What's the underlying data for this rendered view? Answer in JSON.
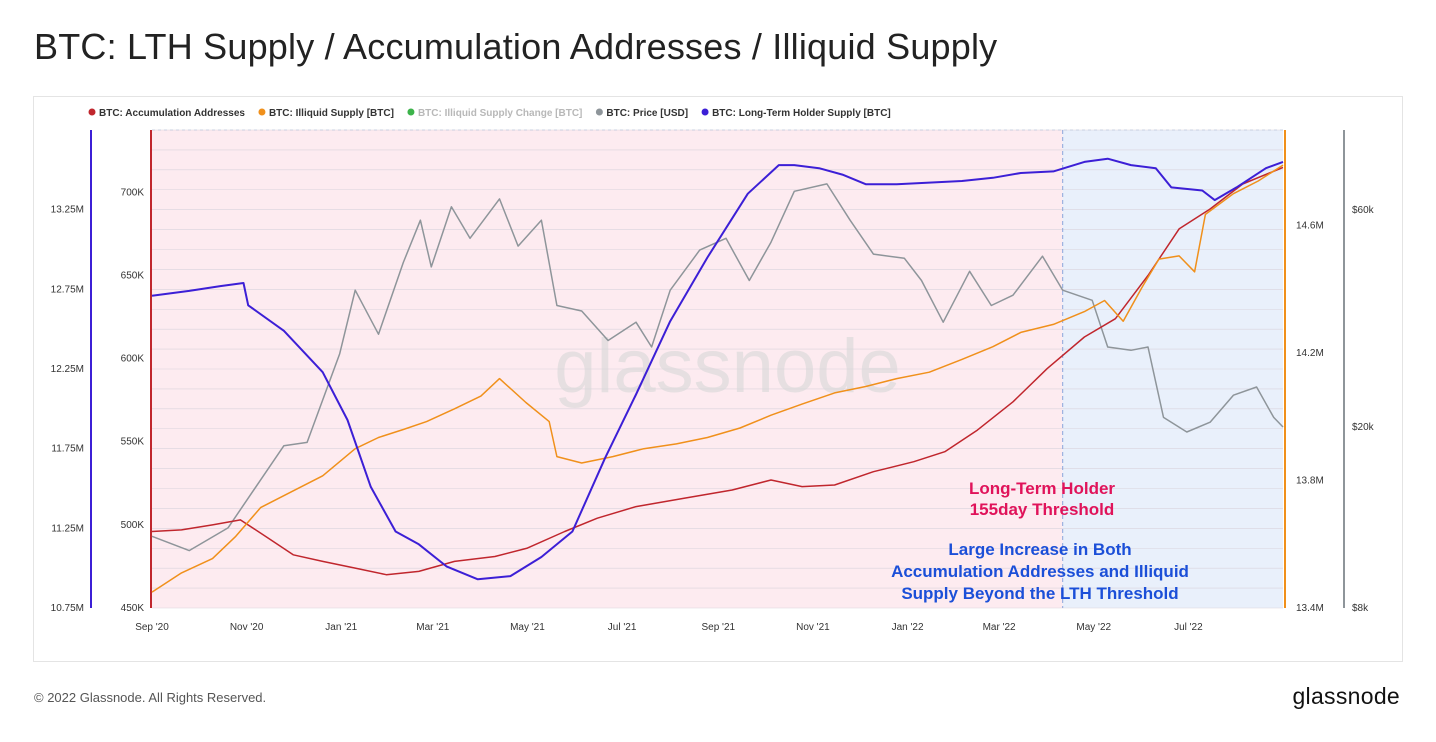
{
  "header": {
    "title": "BTC: LTH Supply / Accumulation Addresses / Illiquid Supply"
  },
  "footer": {
    "copyright": "© 2022 Glassnode. All Rights Reserved.",
    "brand": "glassnode"
  },
  "watermark": "glassnode",
  "colors": {
    "accumulation": "#c0262d",
    "illiquid": "#f0901b",
    "illiquid_change": "#3cb34a",
    "price": "#8e959a",
    "lth": "#3c1fd6",
    "lth_zone": "#fdebf0",
    "post_threshold_zone": "#e9f0fb",
    "anno_pink": "#e0135a",
    "anno_blue": "#1b4fd8"
  },
  "chart_data": {
    "type": "line",
    "title": "BTC: LTH Supply / Accumulation Addresses / Illiquid Supply",
    "legend": {
      "position": "top-left",
      "entries": [
        {
          "name": "BTC: Accumulation Addresses",
          "color": "#c0262d"
        },
        {
          "name": "BTC: Illiquid Supply [BTC]",
          "color": "#f0901b"
        },
        {
          "name": "BTC: Illiquid Supply Change [BTC]",
          "color": "#3cb34a",
          "disabled": true
        },
        {
          "name": "BTC: Price [USD]",
          "color": "#8e959a"
        },
        {
          "name": "BTC: Long-Term Holder Supply [BTC]",
          "color": "#3c1fd6"
        }
      ]
    },
    "x_axis": {
      "range": [
        "2020-09-01",
        "2022-08-31"
      ],
      "ticks": [
        {
          "date": "2020-09-01",
          "label": "Sep '20"
        },
        {
          "date": "2020-11-01",
          "label": "Nov '20"
        },
        {
          "date": "2021-01-01",
          "label": "Jan '21"
        },
        {
          "date": "2021-03-01",
          "label": "Mar '21"
        },
        {
          "date": "2021-05-01",
          "label": "May '21"
        },
        {
          "date": "2021-07-01",
          "label": "Jul '21"
        },
        {
          "date": "2021-09-01",
          "label": "Sep '21"
        },
        {
          "date": "2021-11-01",
          "label": "Nov '21"
        },
        {
          "date": "2022-01-01",
          "label": "Jan '22"
        },
        {
          "date": "2022-03-01",
          "label": "Mar '22"
        },
        {
          "date": "2022-05-01",
          "label": "May '22"
        },
        {
          "date": "2022-07-01",
          "label": "Jul '22"
        }
      ]
    },
    "axes": {
      "illiquid": {
        "side": "left-outer",
        "range": [
          10750000,
          13750000
        ],
        "ticks": [
          {
            "v": 10750000,
            "label": "10.75M"
          },
          {
            "v": 11250000,
            "label": "11.25M"
          },
          {
            "v": 11750000,
            "label": "11.75M"
          },
          {
            "v": 12250000,
            "label": "12.25M"
          },
          {
            "v": 12750000,
            "label": "12.75M"
          },
          {
            "v": 13250000,
            "label": "13.25M"
          }
        ]
      },
      "accumulation": {
        "side": "left-inner",
        "range": [
          450000,
          737500
        ],
        "ticks": [
          {
            "v": 450000,
            "label": "450K"
          },
          {
            "v": 500000,
            "label": "500K"
          },
          {
            "v": 550000,
            "label": "550K"
          },
          {
            "v": 600000,
            "label": "600K"
          },
          {
            "v": 650000,
            "label": "650K"
          },
          {
            "v": 700000,
            "label": "700K"
          }
        ]
      },
      "lth": {
        "side": "right-inner",
        "range": [
          13400000,
          14900000
        ],
        "ticks": [
          {
            "v": 13400000,
            "label": "13.4M"
          },
          {
            "v": 13800000,
            "label": "13.8M"
          },
          {
            "v": 14200000,
            "label": "14.2M"
          },
          {
            "v": 14600000,
            "label": "14.6M"
          }
        ]
      },
      "price": {
        "side": "right-outer",
        "scale": "log",
        "range": [
          8000,
          90000
        ],
        "ticks": [
          {
            "v": 8000,
            "label": "$8k"
          },
          {
            "v": 20000,
            "label": "$20k"
          },
          {
            "v": 60000,
            "label": "$60k"
          }
        ]
      }
    },
    "grid": true,
    "zones": [
      {
        "from": "2020-09-01",
        "to": "2022-04-11",
        "label": "lth_zone"
      },
      {
        "from": "2022-04-11",
        "to": "2022-08-31",
        "label": "post_threshold_zone"
      }
    ],
    "threshold_date": "2022-04-11",
    "series": [
      {
        "name": "BTC: Accumulation Addresses",
        "axis": "accumulation",
        "color": "#c0262d",
        "points": [
          [
            "2020-09-01",
            496000
          ],
          [
            "2020-09-20",
            497000
          ],
          [
            "2020-10-10",
            500000
          ],
          [
            "2020-10-28",
            503000
          ],
          [
            "2020-11-15",
            492000
          ],
          [
            "2020-12-01",
            482000
          ],
          [
            "2020-12-20",
            478000
          ],
          [
            "2021-01-10",
            474000
          ],
          [
            "2021-01-30",
            470000
          ],
          [
            "2021-02-20",
            472000
          ],
          [
            "2021-03-15",
            478000
          ],
          [
            "2021-04-10",
            481000
          ],
          [
            "2021-05-01",
            486000
          ],
          [
            "2021-05-25",
            496000
          ],
          [
            "2021-06-15",
            504000
          ],
          [
            "2021-07-10",
            511000
          ],
          [
            "2021-08-10",
            516000
          ],
          [
            "2021-09-10",
            521000
          ],
          [
            "2021-10-05",
            527000
          ],
          [
            "2021-10-25",
            523000
          ],
          [
            "2021-11-15",
            524000
          ],
          [
            "2021-12-10",
            532000
          ],
          [
            "2022-01-05",
            538000
          ],
          [
            "2022-01-25",
            544000
          ],
          [
            "2022-02-15",
            557000
          ],
          [
            "2022-03-10",
            574000
          ],
          [
            "2022-04-01",
            594000
          ],
          [
            "2022-04-25",
            613000
          ],
          [
            "2022-05-15",
            624000
          ],
          [
            "2022-06-05",
            650000
          ],
          [
            "2022-06-25",
            678000
          ],
          [
            "2022-07-15",
            690000
          ],
          [
            "2022-08-05",
            705000
          ],
          [
            "2022-08-31",
            715000
          ]
        ]
      },
      {
        "name": "BTC: Illiquid Supply [BTC]",
        "axis": "illiquid",
        "color": "#f0901b",
        "points": [
          [
            "2020-09-01",
            10850000
          ],
          [
            "2020-09-20",
            10970000
          ],
          [
            "2020-10-10",
            11060000
          ],
          [
            "2020-10-25",
            11200000
          ],
          [
            "2020-11-10",
            11380000
          ],
          [
            "2020-11-30",
            11480000
          ],
          [
            "2020-12-20",
            11580000
          ],
          [
            "2021-01-10",
            11750000
          ],
          [
            "2021-01-25",
            11820000
          ],
          [
            "2021-02-10",
            11870000
          ],
          [
            "2021-02-25",
            11920000
          ],
          [
            "2021-03-15",
            12000000
          ],
          [
            "2021-04-01",
            12080000
          ],
          [
            "2021-04-13",
            12190000
          ],
          [
            "2021-04-30",
            12040000
          ],
          [
            "2021-05-15",
            11920000
          ],
          [
            "2021-05-20",
            11700000
          ],
          [
            "2021-06-05",
            11660000
          ],
          [
            "2021-06-25",
            11700000
          ],
          [
            "2021-07-15",
            11750000
          ],
          [
            "2021-08-05",
            11780000
          ],
          [
            "2021-08-25",
            11820000
          ],
          [
            "2021-09-15",
            11880000
          ],
          [
            "2021-10-05",
            11960000
          ],
          [
            "2021-10-25",
            12030000
          ],
          [
            "2021-11-15",
            12100000
          ],
          [
            "2021-12-05",
            12140000
          ],
          [
            "2021-12-25",
            12190000
          ],
          [
            "2022-01-15",
            12230000
          ],
          [
            "2022-02-05",
            12310000
          ],
          [
            "2022-02-25",
            12390000
          ],
          [
            "2022-03-15",
            12480000
          ],
          [
            "2022-04-05",
            12530000
          ],
          [
            "2022-04-25",
            12610000
          ],
          [
            "2022-05-08",
            12680000
          ],
          [
            "2022-05-20",
            12550000
          ],
          [
            "2022-06-01",
            12760000
          ],
          [
            "2022-06-12",
            12940000
          ],
          [
            "2022-06-25",
            12960000
          ],
          [
            "2022-07-05",
            12860000
          ],
          [
            "2022-07-12",
            13220000
          ],
          [
            "2022-07-30",
            13350000
          ],
          [
            "2022-08-15",
            13430000
          ],
          [
            "2022-08-31",
            13530000
          ]
        ]
      },
      {
        "name": "BTC: Price [USD]",
        "axis": "price",
        "color": "#8e959a",
        "points": [
          [
            "2020-09-01",
            11500
          ],
          [
            "2020-09-25",
            10700
          ],
          [
            "2020-10-20",
            12000
          ],
          [
            "2020-11-10",
            15300
          ],
          [
            "2020-11-25",
            18200
          ],
          [
            "2020-12-10",
            18500
          ],
          [
            "2020-12-31",
            29000
          ],
          [
            "2021-01-10",
            40000
          ],
          [
            "2021-01-25",
            32000
          ],
          [
            "2021-02-10",
            46000
          ],
          [
            "2021-02-21",
            57000
          ],
          [
            "2021-02-28",
            45000
          ],
          [
            "2021-03-13",
            61000
          ],
          [
            "2021-03-25",
            52000
          ],
          [
            "2021-04-13",
            63500
          ],
          [
            "2021-04-25",
            50000
          ],
          [
            "2021-05-10",
            57000
          ],
          [
            "2021-05-20",
            37000
          ],
          [
            "2021-06-05",
            36000
          ],
          [
            "2021-06-22",
            31000
          ],
          [
            "2021-07-10",
            34000
          ],
          [
            "2021-07-20",
            30000
          ],
          [
            "2021-08-01",
            40000
          ],
          [
            "2021-08-20",
            49000
          ],
          [
            "2021-09-06",
            52000
          ],
          [
            "2021-09-21",
            42000
          ],
          [
            "2021-10-05",
            51000
          ],
          [
            "2021-10-20",
            66000
          ],
          [
            "2021-11-10",
            68500
          ],
          [
            "2021-11-25",
            57000
          ],
          [
            "2021-12-10",
            48000
          ],
          [
            "2021-12-30",
            47000
          ],
          [
            "2022-01-10",
            42000
          ],
          [
            "2022-01-24",
            34000
          ],
          [
            "2022-02-10",
            44000
          ],
          [
            "2022-02-24",
            37000
          ],
          [
            "2022-03-10",
            39000
          ],
          [
            "2022-03-29",
            47500
          ],
          [
            "2022-04-11",
            40000
          ],
          [
            "2022-04-30",
            38000
          ],
          [
            "2022-05-10",
            30000
          ],
          [
            "2022-05-25",
            29500
          ],
          [
            "2022-06-05",
            30000
          ],
          [
            "2022-06-15",
            21000
          ],
          [
            "2022-06-30",
            19500
          ],
          [
            "2022-07-15",
            20500
          ],
          [
            "2022-07-30",
            23500
          ],
          [
            "2022-08-14",
            24500
          ],
          [
            "2022-08-25",
            21000
          ],
          [
            "2022-08-31",
            20000
          ]
        ]
      },
      {
        "name": "BTC: Long-Term Holder Supply [BTC]",
        "axis": "lth",
        "color": "#3c1fd6",
        "points": [
          [
            "2020-09-01",
            14380000
          ],
          [
            "2020-09-25",
            14395000
          ],
          [
            "2020-10-15",
            14410000
          ],
          [
            "2020-10-30",
            14420000
          ],
          [
            "2020-11-02",
            14350000
          ],
          [
            "2020-11-25",
            14270000
          ],
          [
            "2020-12-20",
            14140000
          ],
          [
            "2021-01-05",
            13990000
          ],
          [
            "2021-01-20",
            13780000
          ],
          [
            "2021-02-05",
            13640000
          ],
          [
            "2021-02-20",
            13600000
          ],
          [
            "2021-03-10",
            13530000
          ],
          [
            "2021-03-30",
            13490000
          ],
          [
            "2021-04-20",
            13500000
          ],
          [
            "2021-05-10",
            13560000
          ],
          [
            "2021-05-30",
            13640000
          ],
          [
            "2021-06-20",
            13870000
          ],
          [
            "2021-07-10",
            14070000
          ],
          [
            "2021-08-01",
            14300000
          ],
          [
            "2021-08-25",
            14500000
          ],
          [
            "2021-09-20",
            14700000
          ],
          [
            "2021-10-10",
            14790000
          ],
          [
            "2021-10-20",
            14790000
          ],
          [
            "2021-11-05",
            14780000
          ],
          [
            "2021-11-20",
            14760000
          ],
          [
            "2021-12-05",
            14730000
          ],
          [
            "2021-12-25",
            14730000
          ],
          [
            "2022-01-15",
            14735000
          ],
          [
            "2022-02-05",
            14740000
          ],
          [
            "2022-02-25",
            14750000
          ],
          [
            "2022-03-15",
            14765000
          ],
          [
            "2022-04-05",
            14770000
          ],
          [
            "2022-04-25",
            14800000
          ],
          [
            "2022-05-10",
            14810000
          ],
          [
            "2022-05-25",
            14790000
          ],
          [
            "2022-06-10",
            14780000
          ],
          [
            "2022-06-20",
            14720000
          ],
          [
            "2022-07-10",
            14710000
          ],
          [
            "2022-07-18",
            14680000
          ],
          [
            "2022-08-01",
            14720000
          ],
          [
            "2022-08-20",
            14780000
          ],
          [
            "2022-08-31",
            14800000
          ]
        ]
      }
    ],
    "annotations": [
      {
        "lines": [
          "Long-Term Holder",
          "155day Threshold"
        ],
        "color": "#e0135a"
      },
      {
        "lines": [
          "Large Increase in Both",
          "Accumulation Addresses and Illiquid",
          "Supply Beyond the LTH Threshold"
        ],
        "color": "#1b4fd8"
      }
    ]
  }
}
